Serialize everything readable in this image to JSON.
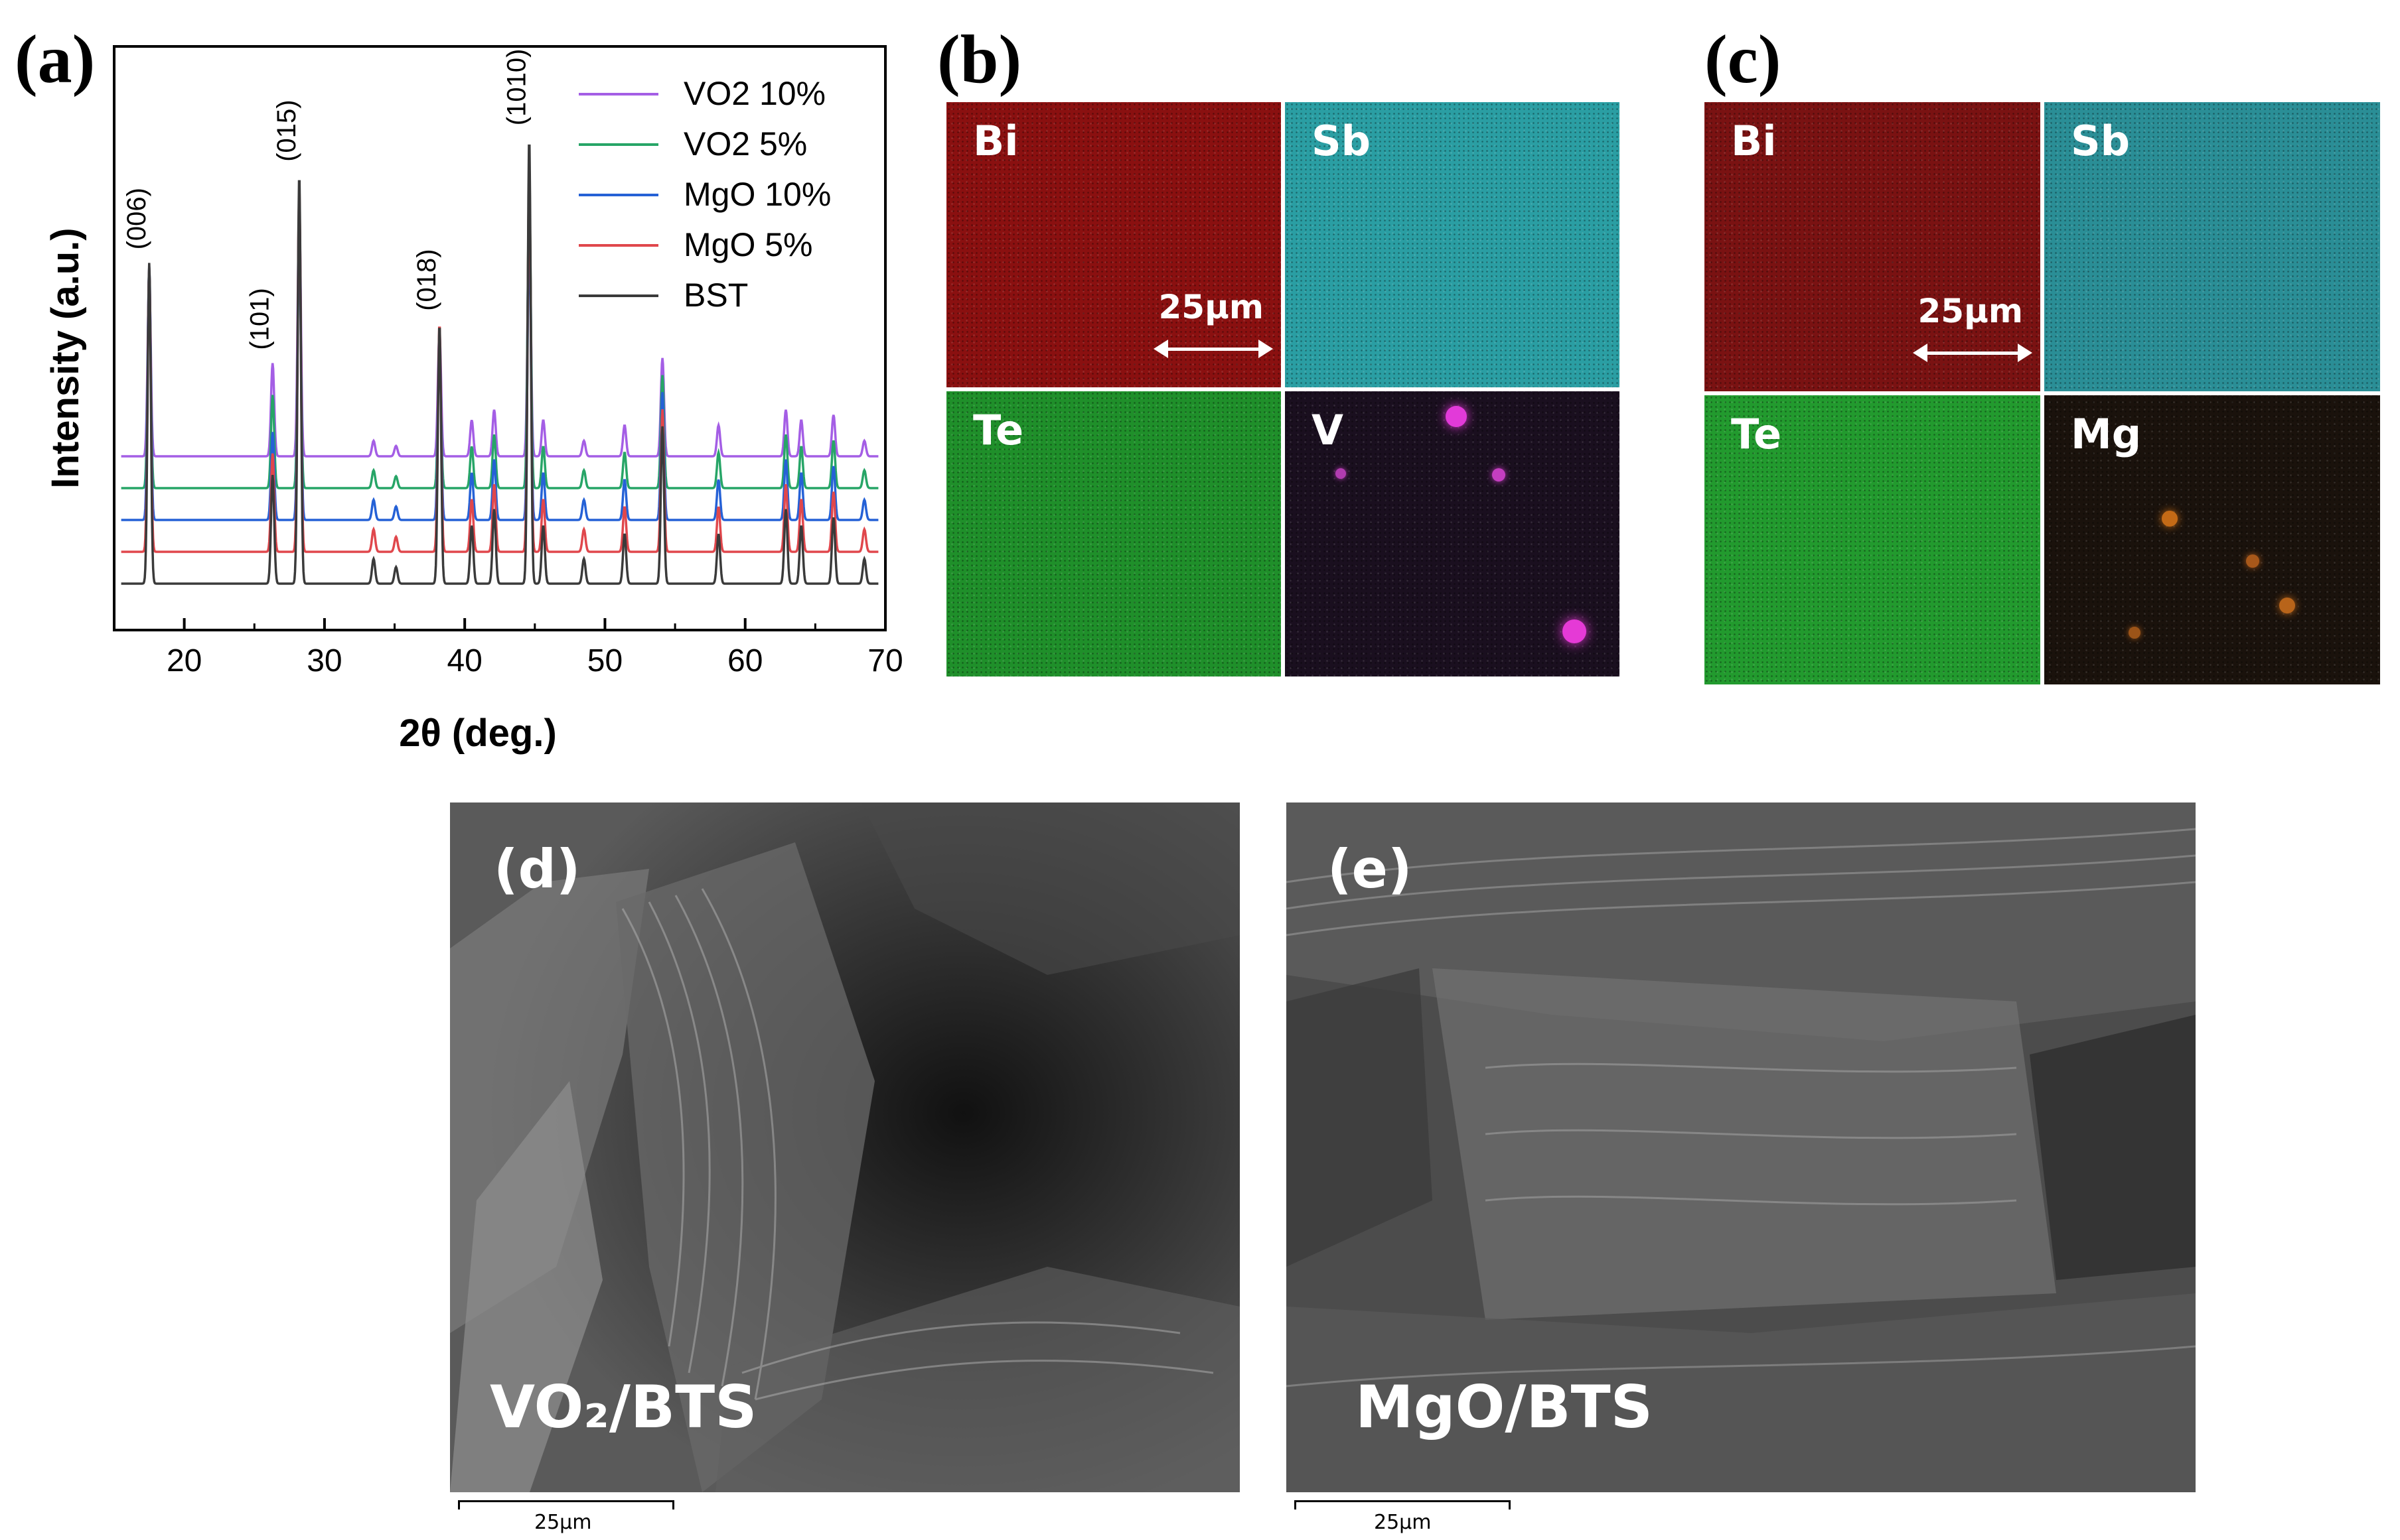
{
  "panels": {
    "a": "(a)",
    "b": "(b)",
    "c": "(c)",
    "d": "(d)",
    "e": "(e)"
  },
  "chart_data": {
    "type": "line",
    "xlabel": "2θ (deg.)",
    "ylabel": "Intensity (a.u.)",
    "xlim": [
      15,
      70
    ],
    "xticks": [
      20,
      30,
      40,
      50,
      60,
      70
    ],
    "legend_position": "top-right",
    "peaks": [
      {
        "label": "(006)",
        "x": 17.5
      },
      {
        "label": "(101)",
        "x": 26.3
      },
      {
        "label": "(015)",
        "x": 28.2
      },
      {
        "label": "(018)",
        "x": 38.2
      },
      {
        "label": "(1010)",
        "x": 44.6
      }
    ],
    "series": [
      {
        "name": "VO2 10%",
        "color": "#a45ee5",
        "offset": 4,
        "peak_heights": [
          0.34,
          0.18,
          0.48,
          0.24,
          0.48
        ]
      },
      {
        "name": "VO2 5%",
        "color": "#27a567",
        "offset": 3,
        "peak_heights": [
          0.39,
          0.18,
          0.48,
          0.26,
          0.59
        ]
      },
      {
        "name": "MgO 10%",
        "color": "#2561d6",
        "offset": 2,
        "peak_heights": [
          0.49,
          0.17,
          0.58,
          0.36,
          0.58
        ]
      },
      {
        "name": "MgO 5%",
        "color": "#e0474c",
        "offset": 1,
        "peak_heights": [
          0.55,
          0.19,
          0.7,
          0.44,
          0.74
        ]
      },
      {
        "name": "BST",
        "color": "#3a3a3a",
        "offset": 0,
        "peak_heights": [
          0.62,
          0.21,
          0.79,
          0.5,
          0.86
        ]
      }
    ]
  },
  "eds_b": {
    "tiles": [
      {
        "label": "Bi",
        "color": "#8a1010"
      },
      {
        "label": "Sb",
        "color": "#2a9ea3"
      },
      {
        "label": "Te",
        "color": "#1f8f2a"
      },
      {
        "label": "V",
        "color": "#1a0f1f"
      }
    ],
    "scale": "25μm"
  },
  "eds_c": {
    "tiles": [
      {
        "label": "Bi",
        "color": "#7a1212"
      },
      {
        "label": "Sb",
        "color": "#2a8e96"
      },
      {
        "label": "Te",
        "color": "#229a2e"
      },
      {
        "label": "Mg",
        "color": "#1a120c"
      }
    ],
    "scale": "25μm"
  },
  "sem_d": {
    "caption": "VO₂/BTS",
    "scale": "25μm"
  },
  "sem_e": {
    "caption": "MgO/BTS",
    "scale": "25μm"
  }
}
